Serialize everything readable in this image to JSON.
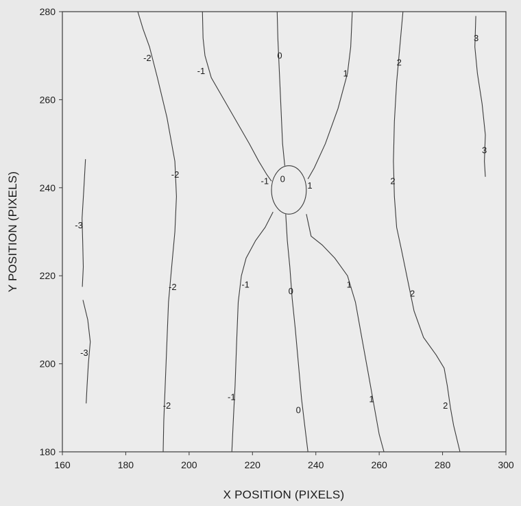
{
  "chart_data": {
    "type": "contour",
    "title": "",
    "xlabel": "X POSITION (PIXELS)",
    "ylabel": "Y POSITION (PIXELS)",
    "xlim": [
      160,
      300
    ],
    "ylim": [
      180,
      280
    ],
    "xticks": [
      160,
      180,
      200,
      220,
      240,
      260,
      280,
      300
    ],
    "yticks": [
      180,
      200,
      220,
      240,
      260,
      280
    ],
    "grid": false,
    "legend": "none",
    "line_color": "#3a3a3a",
    "background": "#ececec",
    "circle": {
      "center": [
        231.5,
        239.5
      ],
      "radius_x": 5.5,
      "radius_y": 5.5
    },
    "contours": [
      {
        "level": -3,
        "points": [
          [
            167.3,
            246.5
          ],
          [
            166.8,
            240
          ],
          [
            166.2,
            233
          ],
          [
            166.4,
            228
          ],
          [
            166.6,
            222
          ],
          [
            166.3,
            217.5
          ]
        ]
      },
      {
        "level": -3,
        "points": [
          [
            166.5,
            214.5
          ],
          [
            168,
            210
          ],
          [
            168.8,
            205
          ],
          [
            168.2,
            200
          ],
          [
            167.8,
            195
          ],
          [
            167.5,
            191
          ]
        ]
      },
      {
        "level": -2,
        "points": [
          [
            183.8,
            280
          ],
          [
            185.5,
            276
          ],
          [
            187.5,
            272
          ],
          [
            190,
            265
          ],
          [
            193,
            256
          ],
          [
            195.5,
            246
          ],
          [
            196,
            238
          ],
          [
            195.5,
            230
          ],
          [
            194.5,
            222
          ],
          [
            193.5,
            214
          ],
          [
            193,
            205
          ],
          [
            192.5,
            196
          ],
          [
            192,
            187
          ],
          [
            191.8,
            180
          ]
        ]
      },
      {
        "level": -1,
        "points": [
          [
            204.2,
            280
          ],
          [
            204.4,
            274
          ],
          [
            205,
            270
          ],
          [
            207,
            265
          ],
          [
            211,
            260
          ],
          [
            215,
            255
          ],
          [
            219,
            250
          ],
          [
            222,
            246
          ],
          [
            224.5,
            243
          ],
          [
            226,
            241.5
          ]
        ]
      },
      {
        "level": -1,
        "points": [
          [
            226.5,
            234.5
          ],
          [
            224,
            231
          ],
          [
            221,
            228
          ],
          [
            218,
            224
          ],
          [
            216.5,
            220
          ],
          [
            215.5,
            214
          ],
          [
            215,
            205
          ],
          [
            214.5,
            195
          ],
          [
            214,
            188
          ],
          [
            213.5,
            180
          ]
        ]
      },
      {
        "level": 0,
        "points": [
          [
            227.8,
            280
          ],
          [
            228,
            274
          ],
          [
            228.5,
            266
          ],
          [
            229,
            258
          ],
          [
            229.5,
            250
          ],
          [
            230.2,
            245
          ]
        ]
      },
      {
        "level": 0,
        "points": [
          [
            230.5,
            234
          ],
          [
            231,
            228
          ],
          [
            231.8,
            222
          ],
          [
            232.5,
            215
          ],
          [
            233.5,
            208
          ],
          [
            234.5,
            200
          ],
          [
            235.5,
            192
          ],
          [
            236.5,
            186
          ],
          [
            237.5,
            180
          ]
        ]
      },
      {
        "level": 1,
        "points": [
          [
            251.5,
            280
          ],
          [
            251,
            272
          ],
          [
            250,
            266
          ],
          [
            247,
            258
          ],
          [
            243,
            250
          ],
          [
            239.5,
            244.5
          ],
          [
            237.5,
            242
          ]
        ]
      },
      {
        "level": 1,
        "points": [
          [
            237,
            234
          ],
          [
            238.5,
            229
          ],
          [
            242,
            227
          ],
          [
            246,
            224
          ],
          [
            250,
            220
          ],
          [
            252.5,
            214
          ],
          [
            254.5,
            206
          ],
          [
            256.5,
            198
          ],
          [
            258.5,
            190
          ],
          [
            260,
            184
          ],
          [
            261.5,
            180
          ]
        ]
      },
      {
        "level": 2,
        "points": [
          [
            267.5,
            280
          ],
          [
            266.5,
            272
          ],
          [
            265.5,
            264
          ],
          [
            264.8,
            255
          ],
          [
            264.5,
            246
          ],
          [
            264.8,
            238
          ],
          [
            265.5,
            231
          ],
          [
            267,
            226
          ],
          [
            269,
            219
          ],
          [
            271,
            212
          ],
          [
            274,
            206
          ],
          [
            278,
            202
          ],
          [
            280.5,
            199
          ],
          [
            281.5,
            195
          ],
          [
            282.5,
            190
          ],
          [
            283.5,
            186
          ],
          [
            285.5,
            180
          ]
        ]
      },
      {
        "level": 3,
        "points": [
          [
            290.5,
            279
          ],
          [
            290.2,
            272
          ],
          [
            291,
            266
          ],
          [
            292.5,
            259
          ],
          [
            293.5,
            252
          ],
          [
            293.2,
            246
          ],
          [
            293.5,
            242.5
          ]
        ]
      }
    ],
    "contour_labels": [
      {
        "text": "-3",
        "x": 165.2,
        "y": 231.5
      },
      {
        "text": "-3",
        "x": 166.9,
        "y": 202.5
      },
      {
        "text": "-2",
        "x": 186.8,
        "y": 269.5
      },
      {
        "text": "-2",
        "x": 195.6,
        "y": 243
      },
      {
        "text": "-2",
        "x": 194.8,
        "y": 217.5
      },
      {
        "text": "-2",
        "x": 193,
        "y": 190.5
      },
      {
        "text": "-1",
        "x": 203.8,
        "y": 266.5
      },
      {
        "text": "-1",
        "x": 223.9,
        "y": 241.5
      },
      {
        "text": "-1",
        "x": 217.8,
        "y": 218
      },
      {
        "text": "-1",
        "x": 213.4,
        "y": 192.5
      },
      {
        "text": "0",
        "x": 228.6,
        "y": 270
      },
      {
        "text": "0",
        "x": 229.5,
        "y": 242
      },
      {
        "text": "0",
        "x": 232.1,
        "y": 216.5
      },
      {
        "text": "0",
        "x": 234.5,
        "y": 189.5
      },
      {
        "text": "1",
        "x": 249.4,
        "y": 266
      },
      {
        "text": "1",
        "x": 238.1,
        "y": 240.5
      },
      {
        "text": "1",
        "x": 250.5,
        "y": 218
      },
      {
        "text": "1",
        "x": 257.6,
        "y": 192
      },
      {
        "text": "2",
        "x": 266.3,
        "y": 268.5
      },
      {
        "text": "2",
        "x": 264.3,
        "y": 241.5
      },
      {
        "text": "2",
        "x": 270.5,
        "y": 216
      },
      {
        "text": "2",
        "x": 280.9,
        "y": 190.5
      },
      {
        "text": "3",
        "x": 290.6,
        "y": 274
      },
      {
        "text": "3",
        "x": 293.2,
        "y": 248.5
      }
    ]
  }
}
